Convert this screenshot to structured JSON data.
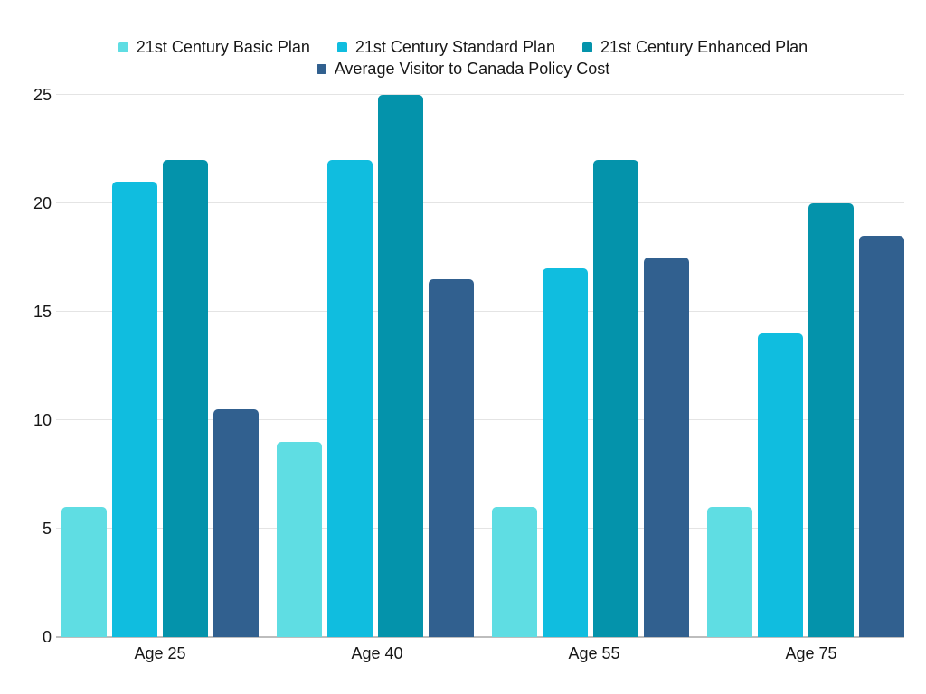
{
  "chart_data": {
    "type": "bar",
    "categories": [
      "Age 25",
      "Age 40",
      "Age 55",
      "Age 75"
    ],
    "series": [
      {
        "key": "basic-plan",
        "name": "21st Century Basic Plan",
        "color": "#5FDDE3",
        "values": [
          6,
          9,
          6,
          6
        ]
      },
      {
        "key": "standard-plan",
        "name": "21st Century Standard Plan",
        "color": "#10BDDF",
        "values": [
          21,
          22,
          17,
          14
        ]
      },
      {
        "key": "enhanced-plan",
        "name": "21st Century Enhanced Plan",
        "color": "#0493AB",
        "values": [
          22,
          25,
          22,
          20
        ]
      },
      {
        "key": "average-visitor-policy",
        "name": "Average Visitor to Canada Policy Cost",
        "color": "#31608F",
        "values": [
          10.5,
          16.5,
          17.5,
          18.5
        ]
      }
    ],
    "ylim": [
      0,
      25
    ],
    "yticks": [
      0,
      5,
      10,
      15,
      20,
      25
    ],
    "grid": "horizontal",
    "legend_position": "top",
    "legend_rows": [
      [
        0,
        1,
        2
      ],
      [
        3
      ]
    ]
  },
  "colors": {
    "background": "#ffffff",
    "gridline": "#e4e4e4",
    "axis_line": "#bdbdbd",
    "text": "#171717"
  }
}
